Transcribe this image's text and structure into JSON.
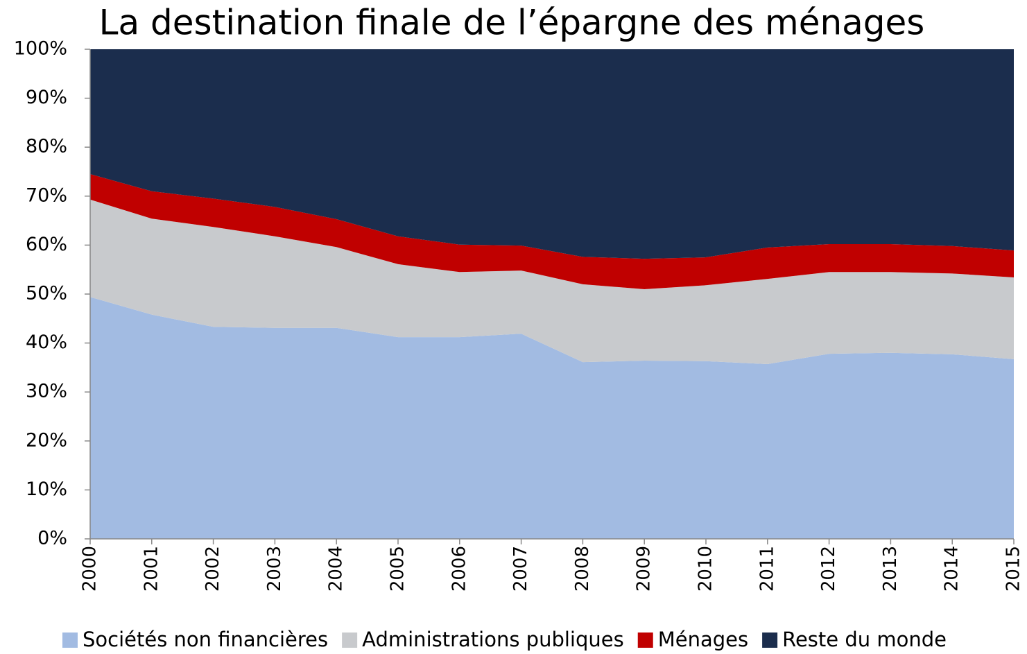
{
  "chart_data": {
    "type": "stacked_area",
    "title": "La destination finale de l’épargne des ménages",
    "categories": [
      "2000",
      "2001",
      "2002",
      "2003",
      "2004",
      "2005",
      "2006",
      "2007",
      "2008",
      "2009",
      "2010",
      "2011",
      "2012",
      "2013",
      "2014",
      "2015"
    ],
    "series": [
      {
        "name": "Sociétés non financières",
        "color": "#a2bbe2",
        "values": [
          49.4,
          45.8,
          43.3,
          43.1,
          43.1,
          41.2,
          41.2,
          41.9,
          36.1,
          36.4,
          36.3,
          35.7,
          37.8,
          38.0,
          37.7,
          36.7
        ]
      },
      {
        "name": "Administrations publiques",
        "color": "#c8cacd",
        "values": [
          19.9,
          19.6,
          20.4,
          18.7,
          16.5,
          14.9,
          13.3,
          12.9,
          15.9,
          14.6,
          15.5,
          17.4,
          16.7,
          16.5,
          16.5,
          16.7
        ]
      },
      {
        "name": "Ménages",
        "color": "#c00000",
        "values": [
          5.2,
          5.6,
          5.8,
          6.0,
          5.7,
          5.7,
          5.6,
          5.1,
          5.6,
          6.2,
          5.7,
          6.4,
          5.7,
          5.7,
          5.6,
          5.5
        ]
      },
      {
        "name": "Reste du monde",
        "color": "#1b2d4d",
        "values": [
          25.5,
          29.0,
          30.5,
          32.2,
          34.7,
          38.2,
          39.9,
          40.1,
          42.4,
          42.8,
          42.5,
          40.5,
          39.8,
          39.8,
          40.2,
          41.1
        ]
      }
    ],
    "ylim": [
      0,
      100
    ],
    "yticks": [
      {
        "value": 0,
        "label": "0%"
      },
      {
        "value": 10,
        "label": "10%"
      },
      {
        "value": 20,
        "label": "20%"
      },
      {
        "value": 30,
        "label": "30%"
      },
      {
        "value": 40,
        "label": "40%"
      },
      {
        "value": 50,
        "label": "50%"
      },
      {
        "value": 60,
        "label": "60%"
      },
      {
        "value": 70,
        "label": "70%"
      },
      {
        "value": 80,
        "label": "80%"
      },
      {
        "value": 90,
        "label": "90%"
      },
      {
        "value": 100,
        "label": "100%"
      }
    ],
    "legend": "bottom"
  }
}
